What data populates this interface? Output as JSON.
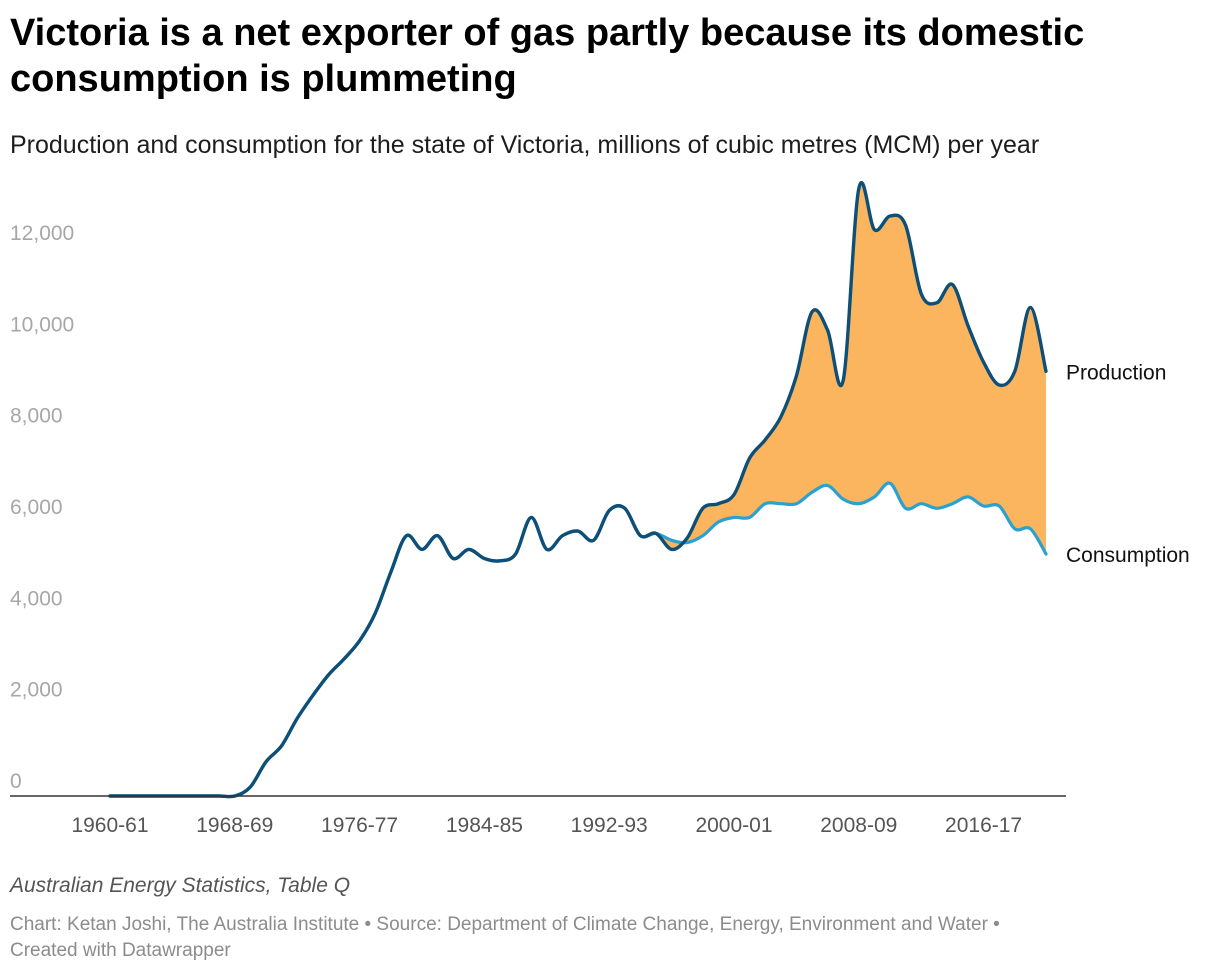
{
  "chart_data": {
    "type": "line",
    "title": "Victoria is a net exporter of gas partly because its domestic consumption is plummeting",
    "subtitle": "Production and consumption for the state of Victoria, millions of cubic metres (MCM) per year",
    "xlabel": "",
    "ylabel": "",
    "ylim": [
      0,
      13500
    ],
    "yticks": [
      0,
      2000,
      4000,
      6000,
      8000,
      10000,
      12000
    ],
    "ytick_labels": [
      "0",
      "2,000",
      "4,000",
      "6,000",
      "8,000",
      "10,000",
      "12,000"
    ],
    "xtick_labels": [
      "1960-61",
      "1968-69",
      "1976-77",
      "1984-85",
      "1992-93",
      "2000-01",
      "2008-09",
      "2016-17"
    ],
    "x_start_year": 1960,
    "x_end_year": 2022,
    "fill_between": {
      "upper": "Production",
      "lower": "Consumption",
      "color": "#fbb55f"
    },
    "series": [
      {
        "name": "Production",
        "label": "Production",
        "color": "#0e4f78",
        "values": [
          0,
          0,
          0,
          0,
          0,
          0,
          0,
          0,
          0,
          200,
          750,
          1100,
          1700,
          2200,
          2650,
          3000,
          3400,
          4000,
          4900,
          5700,
          5400,
          5700,
          5200,
          5400,
          5200,
          5150,
          5300,
          6100,
          5400,
          5700,
          5800,
          5600,
          6250,
          6300,
          5700,
          5750,
          5400,
          5650,
          6300,
          6400,
          6600,
          7400,
          7800,
          8300,
          9200,
          10600,
          10200,
          9100,
          13300,
          12400,
          12700,
          12500,
          11000,
          10800,
          11200,
          10300,
          9500,
          9000,
          9300,
          10700,
          9300
        ]
      },
      {
        "name": "Consumption",
        "label": "Consumption",
        "color": "#2aa1cf",
        "values": [
          0,
          0,
          0,
          0,
          0,
          0,
          0,
          0,
          0,
          200,
          750,
          1100,
          1700,
          2200,
          2650,
          3000,
          3400,
          4000,
          4900,
          5700,
          5400,
          5700,
          5200,
          5400,
          5200,
          5150,
          5300,
          6100,
          5400,
          5700,
          5800,
          5600,
          6250,
          6300,
          5700,
          5750,
          5600,
          5550,
          5700,
          6000,
          6100,
          6100,
          6400,
          6400,
          6400,
          6650,
          6800,
          6500,
          6400,
          6550,
          6850,
          6300,
          6400,
          6300,
          6400,
          6550,
          6350,
          6350,
          5850,
          5850,
          5300
        ]
      }
    ]
  },
  "note": "Australian Energy Statistics, Table Q",
  "footer": {
    "line1": "Chart: Ketan Joshi, The Australia Institute • Source: Department of Climate Change, Energy, Environment and Water •",
    "line2": "Created with Datawrapper"
  }
}
